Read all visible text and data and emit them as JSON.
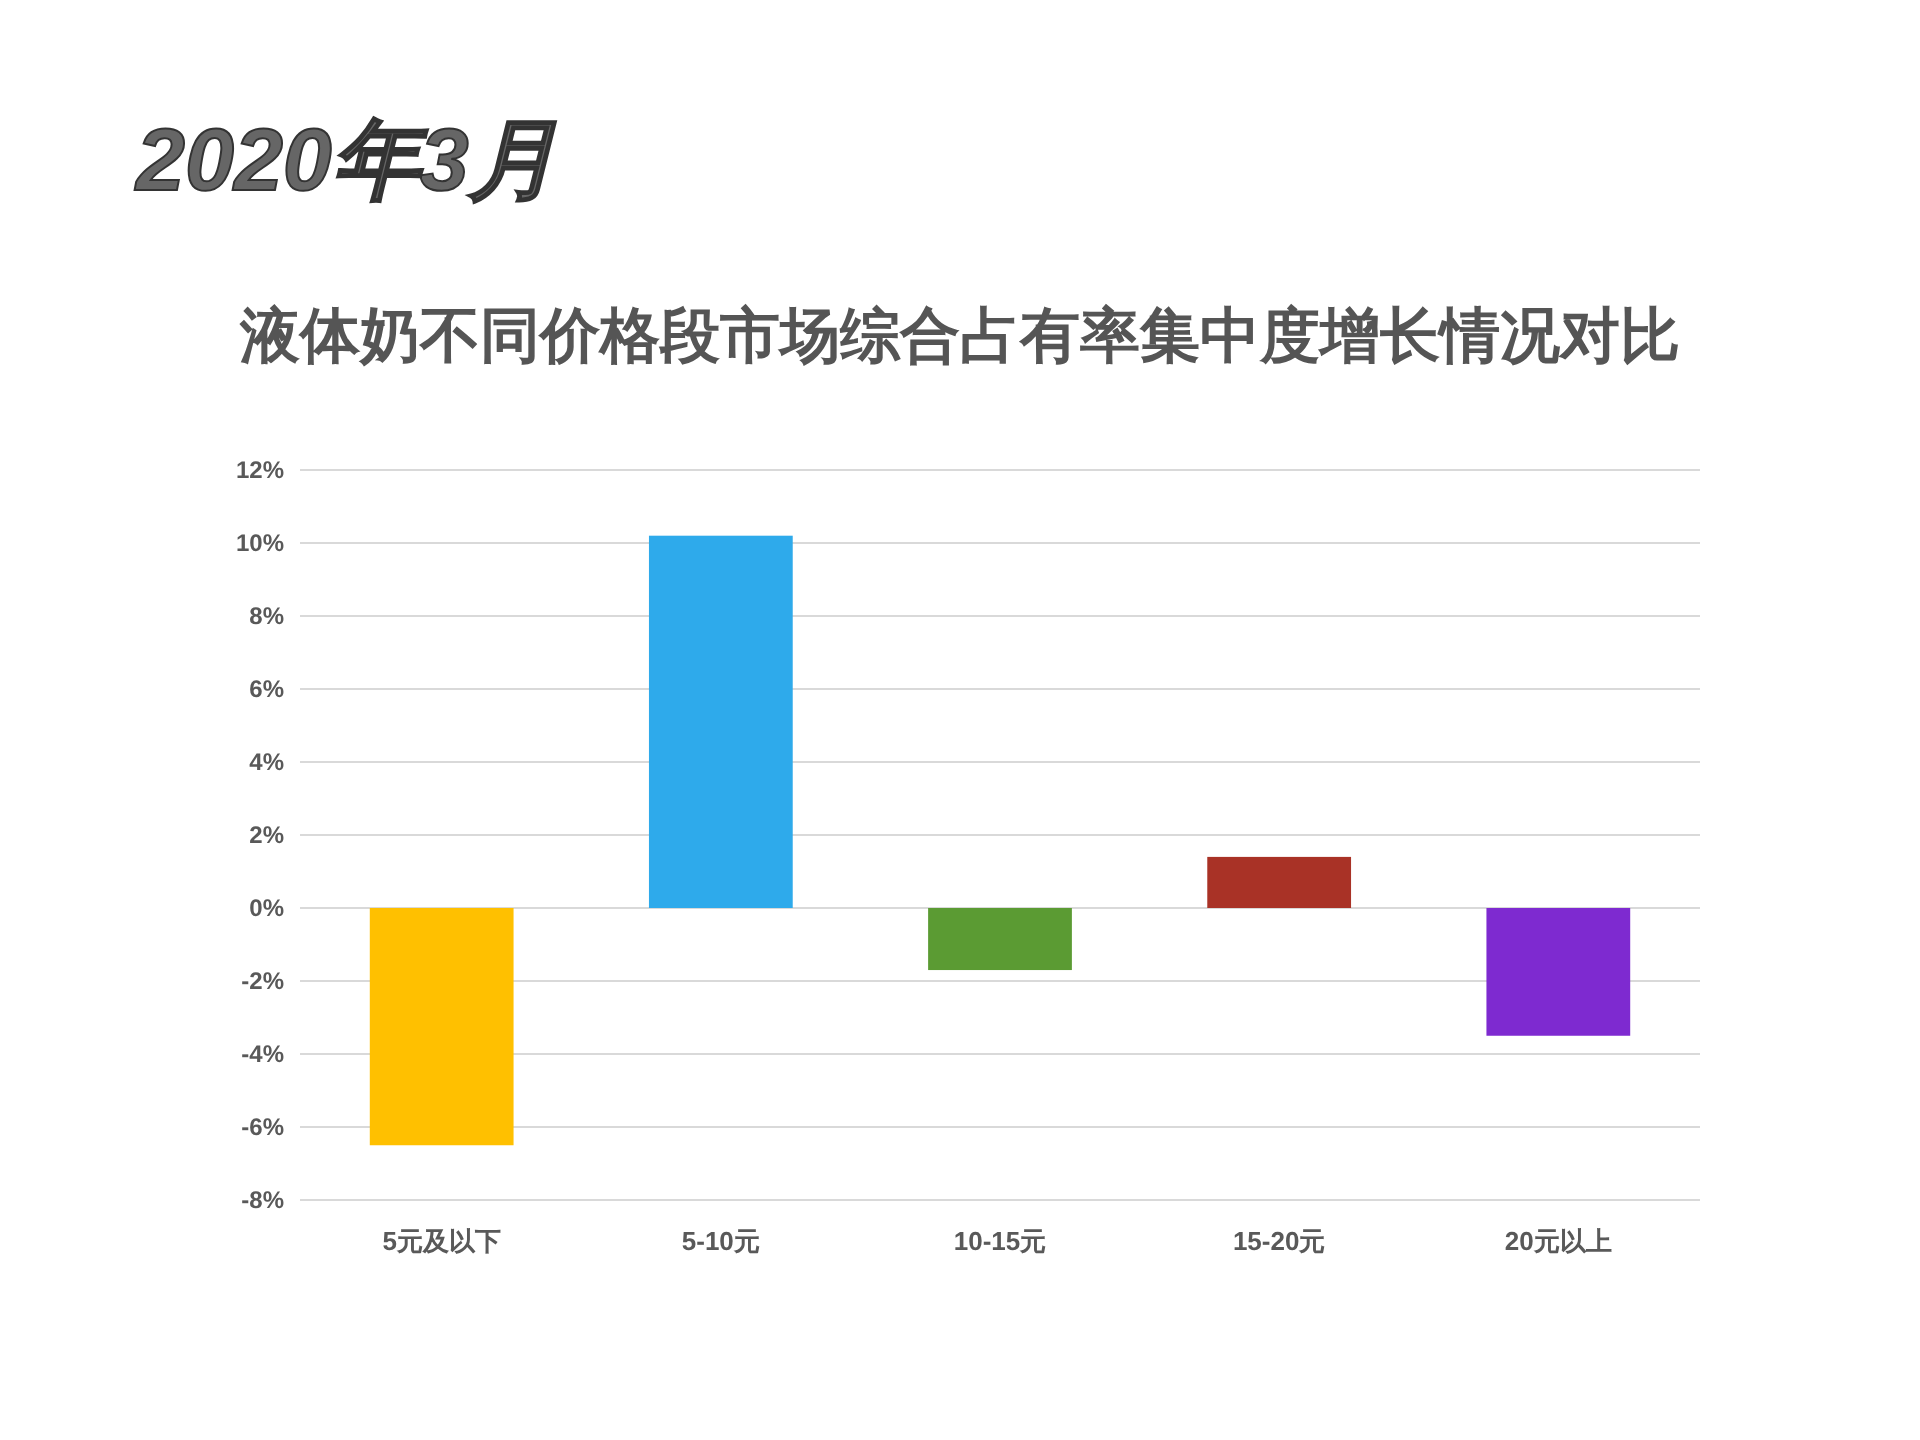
{
  "chart_data": {
    "type": "bar",
    "title": "2020年3月",
    "subtitle": "液体奶不同价格段市场综合占有率集中度增长情况对比",
    "categories": [
      "5元及以下",
      "5-10元",
      "10-15元",
      "15-20元",
      "20元以上"
    ],
    "values": [
      -6.5,
      10.2,
      -1.7,
      1.4,
      -3.5
    ],
    "colors": [
      "#ffc000",
      "#2eaaeb",
      "#5b9b33",
      "#a93226",
      "#7e2ad0"
    ],
    "ylim": [
      -8,
      12
    ],
    "yticks": [
      {
        "value": -8,
        "label": "-8%"
      },
      {
        "value": -6,
        "label": "-6%"
      },
      {
        "value": -4,
        "label": "-4%"
      },
      {
        "value": -2,
        "label": "-2%"
      },
      {
        "value": 0,
        "label": "0%"
      },
      {
        "value": 2,
        "label": "2%"
      },
      {
        "value": 4,
        "label": "4%"
      },
      {
        "value": 6,
        "label": "6%"
      },
      {
        "value": 8,
        "label": "8%"
      },
      {
        "value": 10,
        "label": "10%"
      },
      {
        "value": 12,
        "label": "12%"
      }
    ],
    "grid": true
  }
}
